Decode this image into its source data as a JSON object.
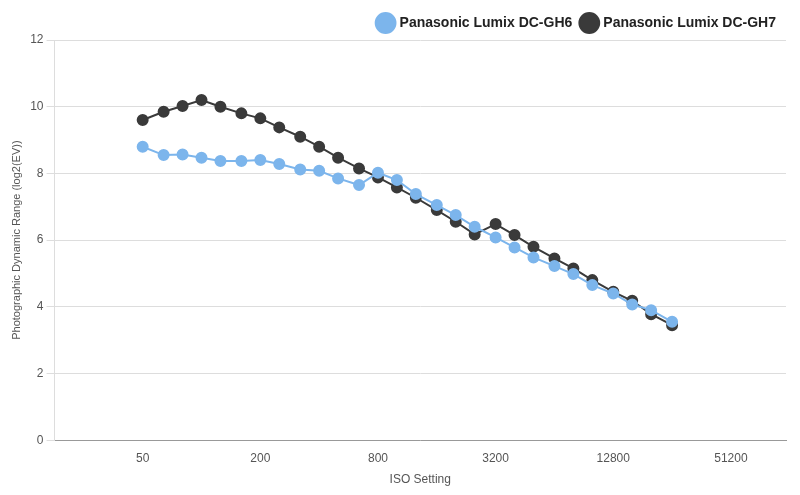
{
  "chart_data": {
    "type": "line",
    "x_label": "ISO Setting",
    "y_label": "Photographic Dynamic Range (log2(EV))",
    "x": [
      50,
      64,
      80,
      100,
      125,
      160,
      200,
      250,
      320,
      400,
      500,
      640,
      800,
      1000,
      1250,
      1600,
      2000,
      2500,
      3200,
      4000,
      5000,
      6400,
      8000,
      10000,
      12800,
      16000,
      20000,
      25600
    ],
    "series": [
      {
        "name": "Panasonic Lumix DC-GH6",
        "color": "#7cb5ec",
        "marker": "circle",
        "line_style": "solid",
        "values": [
          8.8,
          8.55,
          8.57,
          8.47,
          8.37,
          8.37,
          8.4,
          8.28,
          8.12,
          8.08,
          7.85,
          7.65,
          8.02,
          7.8,
          7.38,
          7.05,
          6.75,
          6.4,
          6.08,
          5.78,
          5.48,
          5.22,
          4.98,
          4.65,
          4.4,
          4.07,
          3.9,
          3.55
        ]
      },
      {
        "name": "Panasonic Lumix DC-GH7",
        "color": "#3a3a3a",
        "marker": "circle",
        "line_style": "solid",
        "values": [
          9.6,
          9.85,
          10.02,
          10.2,
          10.0,
          9.8,
          9.65,
          9.38,
          9.1,
          8.8,
          8.47,
          8.15,
          7.88,
          7.58,
          7.27,
          6.9,
          6.55,
          6.17,
          6.48,
          6.15,
          5.8,
          5.45,
          5.15,
          4.8,
          4.45,
          4.18,
          3.78,
          3.45
        ]
      }
    ],
    "log": "x",
    "xlim": [
      17.7,
      98000
    ],
    "xticks": [
      50,
      200,
      800,
      3200,
      12800,
      51200
    ],
    "ylim": [
      0,
      12
    ],
    "yticks": [
      0,
      2,
      4,
      6,
      8,
      10,
      12
    ],
    "grid": true,
    "legend": "top-right"
  }
}
